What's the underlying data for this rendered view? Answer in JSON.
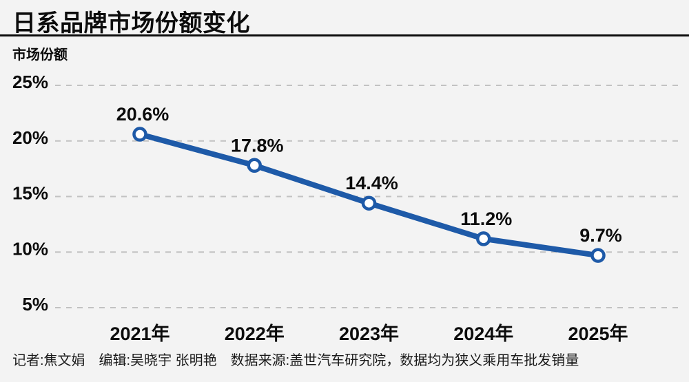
{
  "title": "日系品牌市场份额变化",
  "footer": "记者:焦文娟　编辑:吴晓宇 张明艳　数据来源:盖世汽车研究院，数据均为狭义乘用车批发销量",
  "colors": {
    "background": "#f3f3f3",
    "line": "#1e5aa8",
    "marker_fill": "#ffffff",
    "marker_stroke": "#1e5aa8",
    "grid": "#c2c2c2",
    "text": "#0c0c0c",
    "divider": "#0c0c0c"
  },
  "chart_data": {
    "type": "line",
    "title": "日系品牌市场份额变化",
    "ylabel": "市场份额",
    "xlabel": "",
    "categories": [
      "2021年",
      "2022年",
      "2023年",
      "2024年",
      "2025年"
    ],
    "values": [
      20.6,
      17.8,
      14.4,
      11.2,
      9.7
    ],
    "value_labels": [
      "20.6%",
      "17.8%",
      "14.4%",
      "11.2%",
      "9.7%"
    ],
    "y_ticks": [
      25,
      20,
      15,
      10,
      5
    ],
    "y_tick_labels": [
      "25%",
      "20%",
      "15%",
      "10%",
      "5%"
    ],
    "ylim": [
      5,
      25
    ],
    "grid": "horizontal-dashed",
    "legend": "none",
    "series": [
      {
        "name": "日系品牌市场份额",
        "values": [
          20.6,
          17.8,
          14.4,
          11.2,
          9.7
        ]
      }
    ]
  }
}
